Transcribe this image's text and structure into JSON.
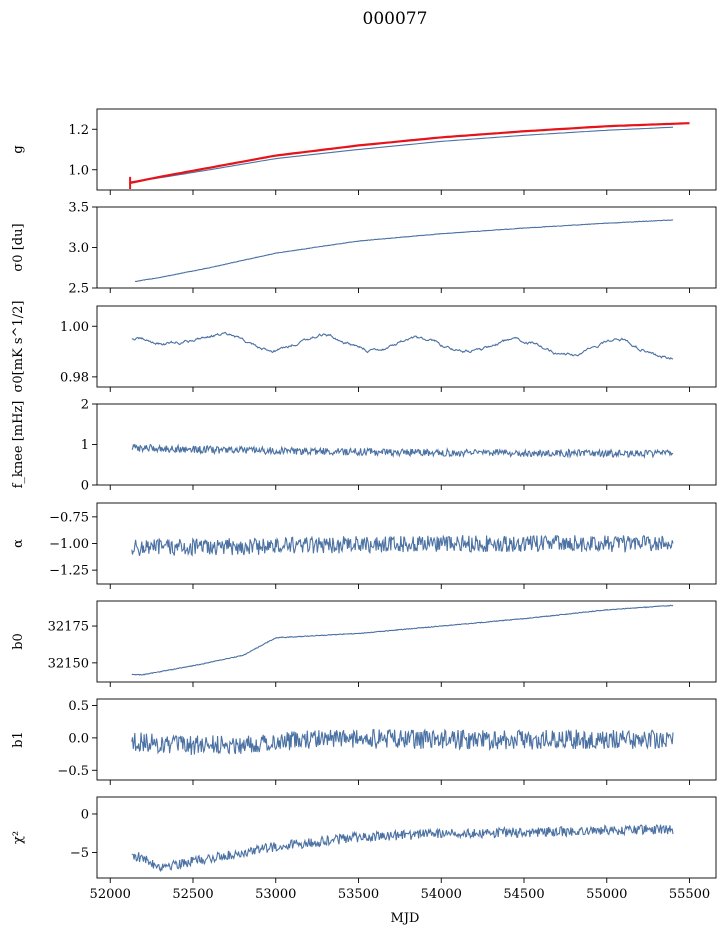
{
  "figure": {
    "title": "000077",
    "xlabel": "MJD",
    "x_ticks": [
      52000,
      52500,
      53000,
      53500,
      54000,
      54500,
      55000,
      55500
    ],
    "xlim": [
      51920,
      55660
    ]
  },
  "colors": {
    "series": "#4c72a4",
    "fit": "#e6131a",
    "axis": "#000000"
  },
  "chart_data": [
    {
      "type": "line",
      "ylabel": "g",
      "ylim": [
        0.9,
        1.3
      ],
      "y_ticks": [
        1.0,
        1.2
      ],
      "y_tick_labels": [
        "1.0",
        "1.2"
      ],
      "series": [
        {
          "name": "",
          "x": [
            52120,
            52300,
            52600,
            53000,
            53500,
            54000,
            54500,
            55000,
            55400
          ],
          "y": [
            0.94,
            0.96,
            1.0,
            1.055,
            1.1,
            1.14,
            1.17,
            1.195,
            1.21
          ],
          "noise": 0.0
        },
        {
          "name": "",
          "x": [
            52120,
            52300,
            52600,
            53000,
            53500,
            54000,
            54500,
            55000,
            55500
          ],
          "y": [
            0.935,
            0.965,
            1.01,
            1.07,
            1.12,
            1.16,
            1.19,
            1.215,
            1.23
          ],
          "noise": 0.0,
          "color_key": "fit"
        }
      ]
    },
    {
      "type": "line",
      "ylabel": "σ0 [du]",
      "ylim": [
        2.5,
        3.5
      ],
      "y_ticks": [
        2.5,
        3.0,
        3.5
      ],
      "y_tick_labels": [
        "2.5",
        "3.0",
        "3.5"
      ],
      "series": [
        {
          "name": "",
          "x": [
            52150,
            52300,
            52600,
            53000,
            53500,
            54000,
            54500,
            55000,
            55400
          ],
          "y": [
            2.58,
            2.63,
            2.75,
            2.93,
            3.08,
            3.17,
            3.24,
            3.3,
            3.34
          ],
          "noise": 0.003
        }
      ]
    },
    {
      "type": "line",
      "ylabel": "σ0[mK s^1/2]",
      "ylim": [
        0.976,
        1.008
      ],
      "y_ticks": [
        0.98,
        1.0
      ],
      "y_tick_labels": [
        "0.98",
        "1.00"
      ],
      "series": [
        {
          "name": "",
          "x": [
            52130,
            52400,
            52700,
            53000,
            53300,
            53600,
            53900,
            54200,
            54500,
            54800,
            55100,
            55400
          ],
          "y": [
            0.993,
            0.996,
            0.994,
            0.993,
            0.994,
            0.993,
            0.992,
            0.993,
            0.992,
            0.991,
            0.992,
            0.99
          ],
          "noise": 0.0012
        }
      ]
    },
    {
      "type": "line",
      "ylabel": "f_knee [mHz]",
      "ylim": [
        0,
        2
      ],
      "y_ticks": [
        0,
        1,
        2
      ],
      "y_tick_labels": [
        "0",
        "1",
        "2"
      ],
      "series": [
        {
          "name": "",
          "x": [
            52130,
            52500,
            53000,
            53500,
            54000,
            54500,
            55000,
            55400
          ],
          "y": [
            0.92,
            0.88,
            0.84,
            0.82,
            0.8,
            0.79,
            0.78,
            0.78
          ],
          "noise": 0.09
        }
      ]
    },
    {
      "type": "line",
      "ylabel": "α",
      "ylim": [
        -1.38,
        -0.62
      ],
      "y_ticks": [
        -1.25,
        -1.0,
        -0.75
      ],
      "y_tick_labels": [
        "−1.25",
        "−1.00",
        "−0.75"
      ],
      "series": [
        {
          "name": "",
          "x": [
            52130,
            52800,
            53500,
            54200,
            54900,
            55400
          ],
          "y": [
            -1.04,
            -1.03,
            -1.01,
            -1.0,
            -1.0,
            -1.01
          ],
          "noise": 0.08
        }
      ]
    },
    {
      "type": "line",
      "ylabel": "b0",
      "ylim": [
        32137,
        32192
      ],
      "y_ticks": [
        32150,
        32175
      ],
      "y_tick_labels": [
        "32150",
        "32175"
      ],
      "series": [
        {
          "name": "",
          "x": [
            52130,
            52200,
            52500,
            52800,
            52900,
            53000,
            53500,
            54000,
            54500,
            55000,
            55400
          ],
          "y": [
            32142,
            32142,
            32148,
            32155,
            32161,
            32167,
            32170,
            32175,
            32180,
            32186,
            32189
          ],
          "noise": 0.25
        }
      ]
    },
    {
      "type": "line",
      "ylabel": "b1",
      "ylim": [
        -0.65,
        0.6
      ],
      "y_ticks": [
        -0.5,
        0.0,
        0.5
      ],
      "y_tick_labels": [
        "−0.5",
        "0.0",
        "0.5"
      ],
      "series": [
        {
          "name": "",
          "x": [
            52130,
            52400,
            52800,
            53200,
            53800,
            54500,
            55000,
            55400
          ],
          "y": [
            -0.05,
            -0.12,
            -0.1,
            -0.02,
            -0.02,
            -0.03,
            -0.02,
            -0.03
          ],
          "noise": 0.15
        }
      ]
    },
    {
      "type": "line",
      "ylabel": "χ²",
      "ylim": [
        -8.3,
        2.2
      ],
      "y_ticks": [
        -5,
        0
      ],
      "y_tick_labels": [
        "−5",
        "0"
      ],
      "series": [
        {
          "name": "",
          "x": [
            52130,
            52300,
            52600,
            53000,
            53500,
            54000,
            54500,
            55000,
            55400
          ],
          "y": [
            -5.2,
            -6.8,
            -5.8,
            -4.2,
            -3.0,
            -2.5,
            -2.4,
            -2.1,
            -2.0
          ],
          "noise": 0.65
        }
      ]
    }
  ]
}
